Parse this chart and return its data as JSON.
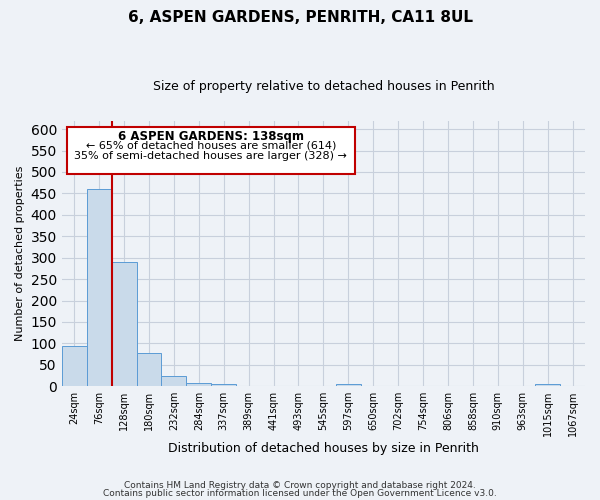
{
  "title": "6, ASPEN GARDENS, PENRITH, CA11 8UL",
  "subtitle": "Size of property relative to detached houses in Penrith",
  "xlabel": "Distribution of detached houses by size in Penrith",
  "ylabel": "Number of detached properties",
  "bin_labels": [
    "24sqm",
    "76sqm",
    "128sqm",
    "180sqm",
    "232sqm",
    "284sqm",
    "337sqm",
    "389sqm",
    "441sqm",
    "493sqm",
    "545sqm",
    "597sqm",
    "650sqm",
    "702sqm",
    "754sqm",
    "806sqm",
    "858sqm",
    "910sqm",
    "963sqm",
    "1015sqm",
    "1067sqm"
  ],
  "bar_heights": [
    95,
    460,
    290,
    77,
    24,
    8,
    5,
    0,
    0,
    0,
    0,
    5,
    0,
    0,
    0,
    0,
    0,
    0,
    0,
    5,
    0
  ],
  "bar_color": "#c9daea",
  "bar_edge_color": "#5b9bd5",
  "vline_x": 2,
  "vline_color": "#c00000",
  "ylim": [
    0,
    620
  ],
  "yticks": [
    0,
    50,
    100,
    150,
    200,
    250,
    300,
    350,
    400,
    450,
    500,
    550,
    600
  ],
  "annotation_title": "6 ASPEN GARDENS: 138sqm",
  "annotation_line1": "← 65% of detached houses are smaller (614)",
  "annotation_line2": "35% of semi-detached houses are larger (328) →",
  "annotation_box_color": "#c00000",
  "footer_line1": "Contains HM Land Registry data © Crown copyright and database right 2024.",
  "footer_line2": "Contains public sector information licensed under the Open Government Licence v3.0.",
  "background_color": "#eef2f7",
  "plot_bg_color": "#eef2f7",
  "grid_color": "#c8d0dc"
}
